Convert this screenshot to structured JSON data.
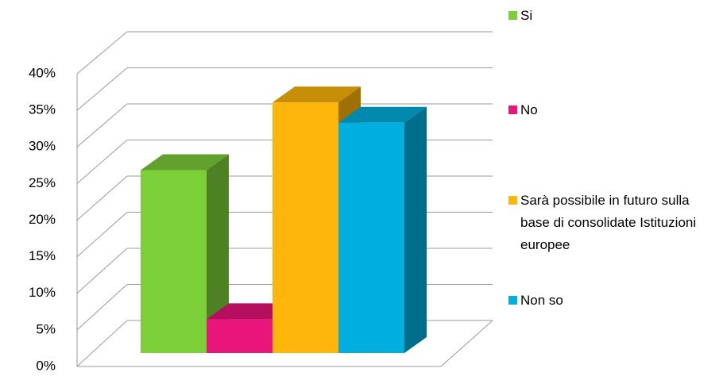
{
  "chart_data": {
    "type": "bar3d",
    "series": [
      {
        "name": "Si",
        "color": "#7dcf3a",
        "values": [
          27
        ]
      },
      {
        "name": "No",
        "color": "#e8157a",
        "values": [
          5
        ]
      },
      {
        "name": "Sarà possibile in futuro sulla base di consolidate Istituzioni europee",
        "color": "#ffb60a",
        "values": [
          37
        ]
      },
      {
        "name": "Non so",
        "color": "#00afe0",
        "values": [
          34
        ]
      }
    ],
    "ylim": [
      0,
      40
    ],
    "yticks": [
      {
        "value": 0,
        "label": "0%"
      },
      {
        "value": 5,
        "label": "5%"
      },
      {
        "value": 10,
        "label": "10%"
      },
      {
        "value": 15,
        "label": "15%"
      },
      {
        "value": 20,
        "label": "20%"
      },
      {
        "value": 25,
        "label": "25%"
      },
      {
        "value": 30,
        "label": "30%"
      },
      {
        "value": 35,
        "label": "35%"
      },
      {
        "value": 40,
        "label": "40%"
      }
    ],
    "grid": true,
    "legend": "right"
  }
}
